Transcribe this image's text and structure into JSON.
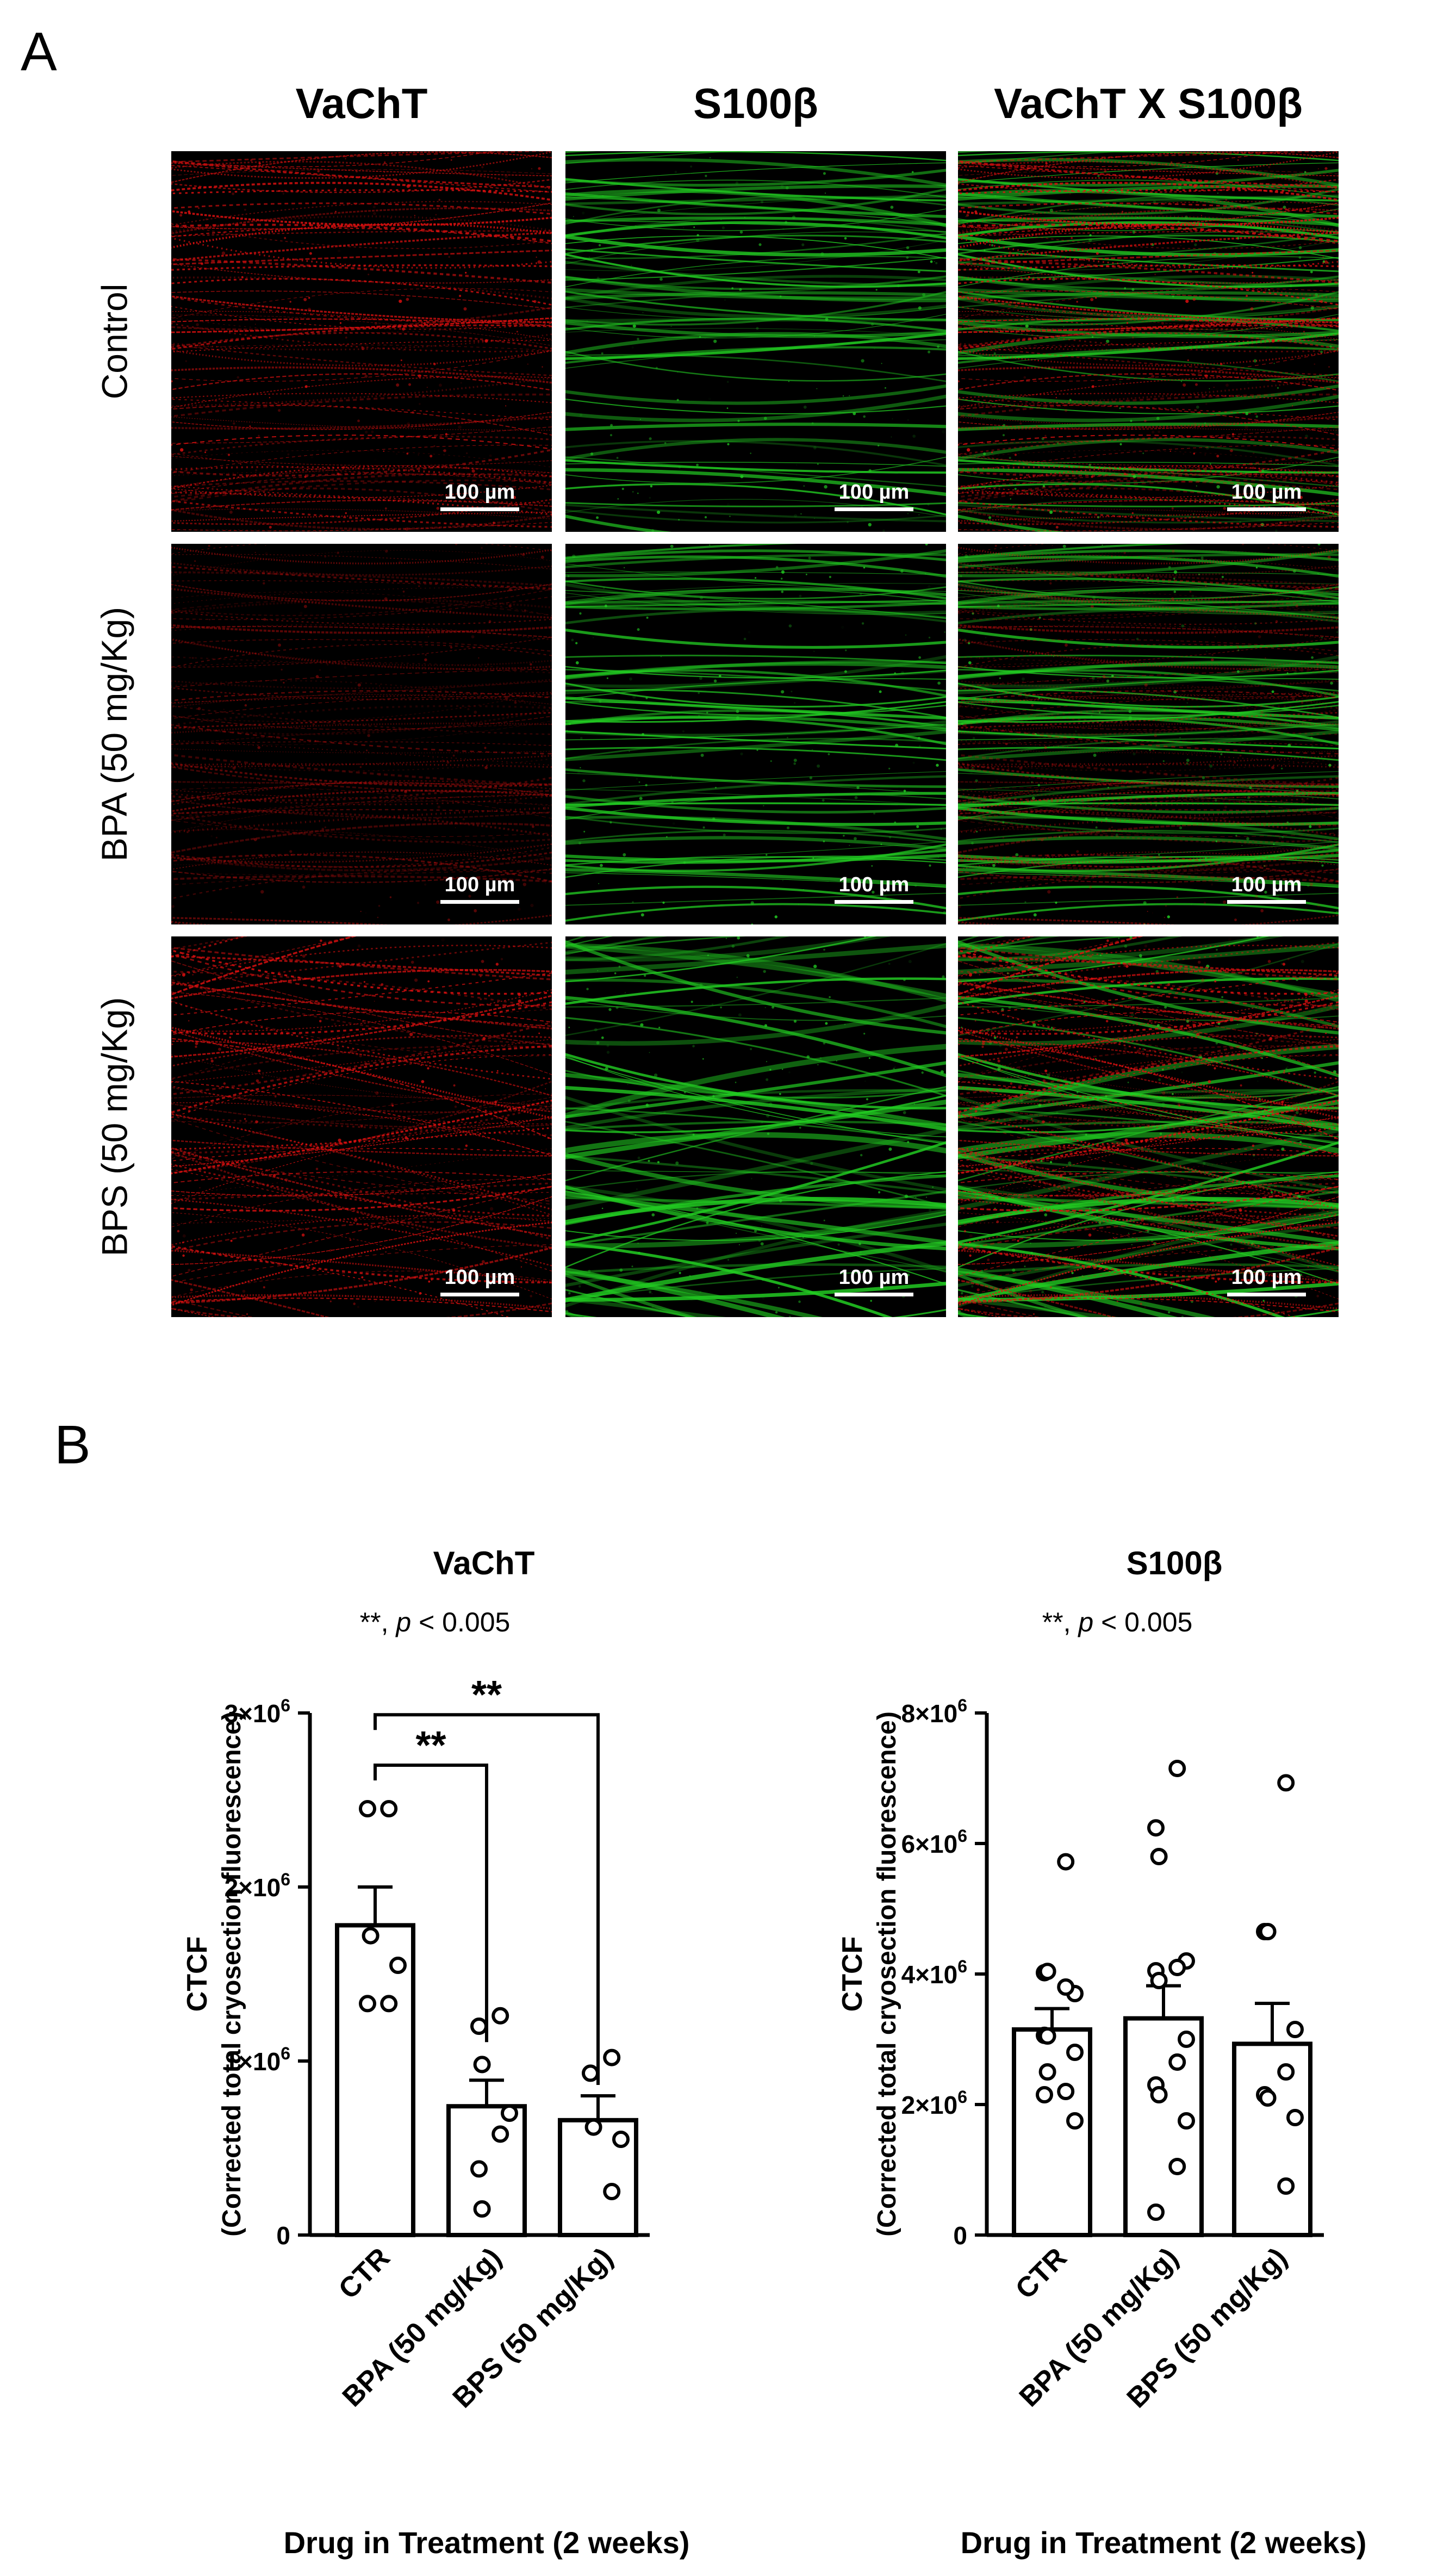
{
  "panel_a": {
    "letter": "A",
    "columns": [
      "VaChT",
      "S100β",
      "VaChT X S100β"
    ],
    "rows": [
      "Control",
      "BPA (50 mg/Kg)",
      "BPS (50 mg/Kg)"
    ],
    "scale_bar": "100 µm",
    "colors": {
      "vacht": "#e01010",
      "s100b": "#22cc22"
    }
  },
  "panel_b": {
    "letter": "B"
  },
  "chart_data": [
    {
      "type": "bar",
      "title": "VaChT",
      "note_prefix": "**, ",
      "note_p": "p",
      "note_suffix": " < 0.005",
      "ylabel": "CTCF",
      "ylabel2": "(Corrected total cryosection fluorescence)",
      "xlabel": "Drug in Treatment (2 weeks)",
      "categories": [
        "CTR",
        "BPA (50 mg/Kg)",
        "BPS (50 mg/Kg)"
      ],
      "ylim": [
        0,
        3000000
      ],
      "yticks": [
        0,
        1000000,
        2000000,
        3000000
      ],
      "ytick_labels": [
        [
          "0",
          ""
        ],
        [
          "1×10",
          "6"
        ],
        [
          "2×10",
          "6"
        ],
        [
          "3×10",
          "6"
        ]
      ],
      "means": [
        1780000,
        740000,
        660000
      ],
      "sem": [
        220000,
        150000,
        140000
      ],
      "points": [
        [
          2450000,
          2450000,
          1720000,
          1550000,
          1330000,
          1330000
        ],
        [
          1260000,
          1200000,
          980000,
          700000,
          580000,
          380000,
          150000
        ],
        [
          1020000,
          930000,
          620000,
          550000,
          250000
        ]
      ],
      "significance": [
        {
          "from": 0,
          "to": 1,
          "label": "**",
          "y": 2700000
        },
        {
          "from": 0,
          "to": 2,
          "label": "**",
          "y": 2990000
        }
      ]
    },
    {
      "type": "bar",
      "title": "S100β",
      "note_prefix": "**, ",
      "note_p": "p",
      "note_suffix": " < 0.005",
      "ylabel": "CTCF",
      "ylabel2": "(Corrected total cryosection fluorescence)",
      "xlabel": "Drug in Treatment (2 weeks)",
      "categories": [
        "CTR",
        "BPA (50 mg/Kg)",
        "BPS (50 mg/Kg)"
      ],
      "ylim": [
        0,
        8000000
      ],
      "yticks": [
        0,
        2000000,
        4000000,
        6000000,
        8000000
      ],
      "ytick_labels": [
        [
          "0",
          ""
        ],
        [
          "2×10",
          "6"
        ],
        [
          "4×10",
          "6"
        ],
        [
          "6×10",
          "6"
        ],
        [
          "8×10",
          "6"
        ]
      ],
      "means": [
        3150000,
        3320000,
        2930000
      ],
      "sem": [
        320000,
        500000,
        620000
      ],
      "points": [
        [
          5720000,
          4020000,
          4040000,
          3700000,
          3800000,
          3060000,
          3050000,
          2800000,
          2200000,
          2150000,
          2500000,
          1750000
        ],
        [
          7150000,
          6240000,
          5800000,
          4200000,
          4100000,
          4050000,
          3900000,
          3000000,
          2650000,
          2300000,
          2150000,
          1750000,
          1050000,
          350000
        ],
        [
          6930000,
          4650000,
          4650000,
          3150000,
          2500000,
          2150000,
          2100000,
          1800000,
          750000
        ]
      ],
      "significance": []
    }
  ]
}
